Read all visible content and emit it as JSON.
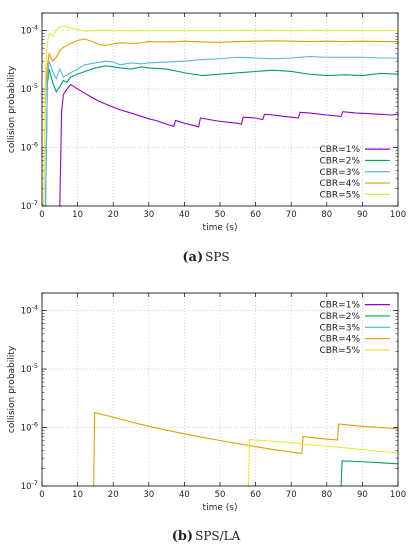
{
  "colors": {
    "CBR=1%": "#9400d3",
    "CBR=2%": "#009e73",
    "CBR=3%": "#56b4e9",
    "CBR=4%": "#e69f00",
    "CBR=5%": "#f0e442"
  },
  "chart_data": [
    {
      "type": "line",
      "caption_label": "(a)",
      "caption_text": "SPS",
      "xlabel": "time (s)",
      "ylabel": "collision probability",
      "xlim": [
        0,
        100
      ],
      "ylim": [
        1e-07,
        0.0002
      ],
      "yscale": "log",
      "grid": true,
      "legend_position": "bottom-right",
      "x_ticks": [
        "0",
        "10",
        "20",
        "30",
        "40",
        "50",
        "60",
        "70",
        "80",
        "90",
        "100"
      ],
      "y_ticks": [
        "10^-7",
        "10^-6",
        "10^-5",
        "10^-4"
      ],
      "series": [
        {
          "name": "CBR=1%",
          "x": [
            5,
            5.5,
            6,
            7,
            8,
            9,
            10,
            12,
            14,
            16,
            18,
            20,
            22,
            25,
            28,
            30,
            32,
            35,
            37,
            37.5,
            40,
            43,
            44,
            44.5,
            47,
            50,
            55,
            56,
            56.5,
            60,
            62,
            62.5,
            65,
            68,
            70,
            72,
            72.5,
            75,
            80,
            84,
            84.5,
            88,
            92,
            95,
            98,
            100
          ],
          "y": [
            1e-07,
            4e-06,
            8e-06,
            1e-05,
            1.2e-05,
            1.1e-05,
            1e-05,
            8.5e-06,
            7.2e-06,
            6.2e-06,
            5.5e-06,
            4.9e-06,
            4.4e-06,
            3.9e-06,
            3.4e-06,
            3.1e-06,
            2.9e-06,
            2.5e-06,
            2.3e-06,
            2.9e-06,
            2.6e-06,
            2.35e-06,
            2.25e-06,
            3.2e-06,
            3e-06,
            2.8e-06,
            2.6e-06,
            2.5e-06,
            3.3e-06,
            3.2e-06,
            3e-06,
            3.7e-06,
            3.6e-06,
            3.4e-06,
            3.3e-06,
            3.2e-06,
            4e-06,
            3.9e-06,
            3.6e-06,
            3.4e-06,
            4.1e-06,
            3.9e-06,
            3.8e-06,
            3.7e-06,
            3.6e-06,
            3.7e-06
          ]
        },
        {
          "name": "CBR=2%",
          "x": [
            1,
            1.5,
            2,
            3,
            4,
            5,
            6,
            7,
            8,
            10,
            12,
            15,
            18,
            20,
            22,
            25,
            28,
            30,
            35,
            40,
            45,
            50,
            55,
            60,
            65,
            70,
            75,
            80,
            85,
            90,
            95,
            100
          ],
          "y": [
            1e-07,
            1.2e-05,
            2.2e-05,
            1.3e-05,
            9e-06,
            1.1e-05,
            1.4e-05,
            1.3e-05,
            1.6e-05,
            1.8e-05,
            2e-05,
            2.3e-05,
            2.5e-05,
            2.4e-05,
            2.3e-05,
            2.2e-05,
            2.4e-05,
            2.3e-05,
            2.2e-05,
            1.9e-05,
            1.7e-05,
            1.8e-05,
            1.9e-05,
            2e-05,
            2.1e-05,
            2e-05,
            1.8e-05,
            1.7e-05,
            1.75e-05,
            1.7e-05,
            1.85e-05,
            1.8e-05
          ]
        },
        {
          "name": "CBR=3%",
          "x": [
            1,
            1.5,
            2,
            3,
            4,
            5,
            6,
            8,
            10,
            12,
            15,
            18,
            20,
            22,
            25,
            28,
            30,
            35,
            40,
            45,
            50,
            55,
            60,
            65,
            70,
            75,
            80,
            85,
            90,
            95,
            100
          ],
          "y": [
            1e-07,
            1.5e-05,
            3e-05,
            2e-05,
            1.5e-05,
            2.2e-05,
            1.6e-05,
            1.9e-05,
            2.2e-05,
            2.6e-05,
            2.8e-05,
            3e-05,
            2.9e-05,
            2.6e-05,
            2.8e-05,
            2.7e-05,
            2.8e-05,
            2.9e-05,
            3e-05,
            3.2e-05,
            3.3e-05,
            3.5e-05,
            3.4e-05,
            3.3e-05,
            3.4e-05,
            3.6e-05,
            3.5e-05,
            3.5e-05,
            3.5e-05,
            3.4e-05,
            3.4e-05
          ]
        },
        {
          "name": "CBR=4%",
          "x": [
            0.5,
            1,
            1.5,
            2,
            3,
            4,
            5,
            6,
            8,
            10,
            12,
            14,
            16,
            18,
            20,
            22,
            25,
            28,
            30,
            35,
            40,
            45,
            50,
            55,
            60,
            65,
            70,
            75,
            80,
            85,
            90,
            95,
            100
          ],
          "y": [
            1e-07,
            1e-05,
            2.5e-05,
            4e-05,
            3e-05,
            3.5e-05,
            4.5e-05,
            5.2e-05,
            6e-05,
            6.8e-05,
            7.2e-05,
            6.5e-05,
            5.8e-05,
            5.6e-05,
            5.9e-05,
            6.2e-05,
            6e-05,
            6.2e-05,
            6.5e-05,
            6.4e-05,
            6.6e-05,
            6.4e-05,
            6.3e-05,
            6.5e-05,
            6.6e-05,
            6.7e-05,
            6.6e-05,
            6.5e-05,
            6.6e-05,
            6.5e-05,
            6.6e-05,
            6.5e-05,
            6.5e-05
          ]
        },
        {
          "name": "CBR=5%",
          "x": [
            0.5,
            1,
            1.5,
            2,
            3,
            4,
            5,
            6,
            7,
            8,
            10,
            12,
            15,
            18,
            20,
            25,
            30,
            40,
            50,
            60,
            70,
            80,
            90,
            95,
            100
          ],
          "y": [
            1e-07,
            2e-05,
            6e-05,
            9e-05,
            8e-05,
            0.0001,
            0.000115,
            0.00012,
            0.000115,
            0.00011,
            0.000105,
            9.8e-05,
            0.0001,
            0.000102,
            0.0001,
            9.9e-05,
            0.0001,
            0.0001,
            0.0001,
            0.000101,
            0.0001,
            0.000101,
            0.0001,
            0.0001,
            0.0001
          ]
        }
      ]
    },
    {
      "type": "line",
      "caption_label": "(b)",
      "caption_text": "SPS/LA",
      "xlabel": "time (s)",
      "ylabel": "collision probability",
      "xlim": [
        0,
        100
      ],
      "ylim": [
        1e-07,
        0.0002
      ],
      "yscale": "log",
      "grid": true,
      "legend_position": "top-right",
      "x_ticks": [
        "0",
        "10",
        "20",
        "30",
        "40",
        "50",
        "60",
        "70",
        "80",
        "90",
        "100"
      ],
      "y_ticks": [
        "10^-7",
        "10^-6",
        "10^-5",
        "10^-4"
      ],
      "series": [
        {
          "name": "CBR=1%",
          "x": [],
          "y": []
        },
        {
          "name": "CBR=2%",
          "x": [
            84,
            84.3,
            90,
            95,
            100
          ],
          "y": [
            1e-07,
            2.7e-07,
            2.6e-07,
            2.5e-07,
            2.4e-07
          ]
        },
        {
          "name": "CBR=3%",
          "x": [],
          "y": []
        },
        {
          "name": "CBR=4%",
          "x": [
            14.5,
            14.8,
            20,
            25,
            30,
            35,
            40,
            45,
            50,
            55,
            60,
            65,
            70,
            73,
            73.3,
            78,
            83,
            83.3,
            90,
            95,
            100
          ],
          "y": [
            1e-07,
            1.8e-06,
            1.5e-06,
            1.25e-06,
            1.05e-06,
            9e-07,
            7.8e-07,
            6.8e-07,
            6e-07,
            5.3e-07,
            4.7e-07,
            4.2e-07,
            3.8e-07,
            3.6e-07,
            7e-07,
            6.5e-07,
            6.1e-07,
            1.15e-06,
            1.05e-06,
            1e-06,
            9.5e-07
          ]
        },
        {
          "name": "CBR=5%",
          "x": [
            58,
            58.3,
            65,
            70,
            75,
            80,
            85,
            90,
            95,
            100
          ],
          "y": [
            1e-07,
            6.2e-07,
            5.8e-07,
            5.5e-07,
            5.1e-07,
            4.8e-07,
            4.5e-07,
            4.2e-07,
            3.9e-07,
            3.7e-07
          ]
        }
      ]
    }
  ]
}
